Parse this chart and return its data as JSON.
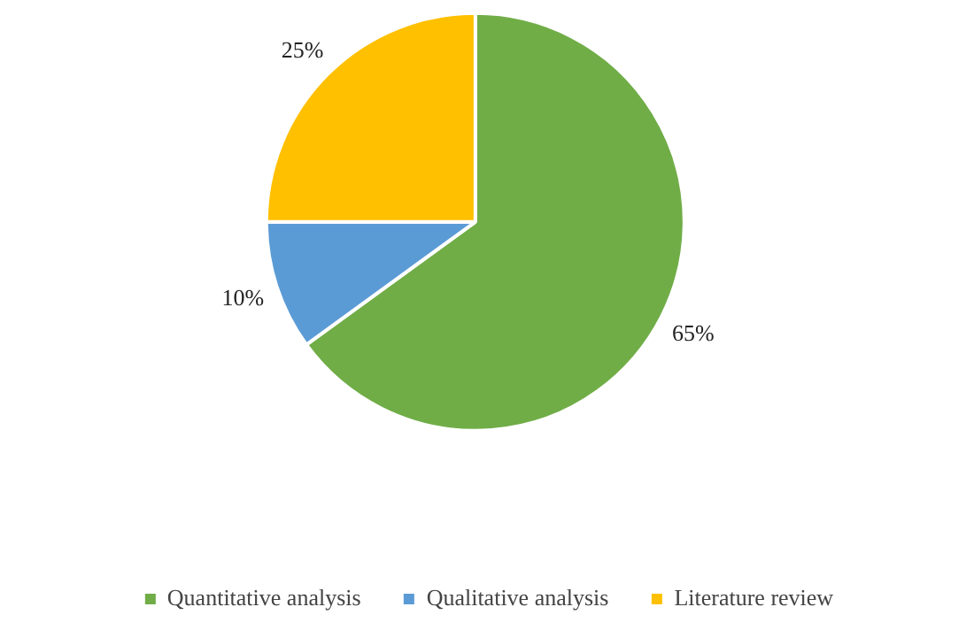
{
  "chart_data": {
    "type": "pie",
    "categories": [
      "Quantitative analysis",
      "Qualitative analysis",
      "Literature review"
    ],
    "values": [
      65,
      10,
      25
    ],
    "colors": [
      "#70ad47",
      "#5b9bd5",
      "#ffc000"
    ],
    "value_labels": [
      "65%",
      "10%",
      "25%"
    ],
    "legend": "bottom"
  }
}
